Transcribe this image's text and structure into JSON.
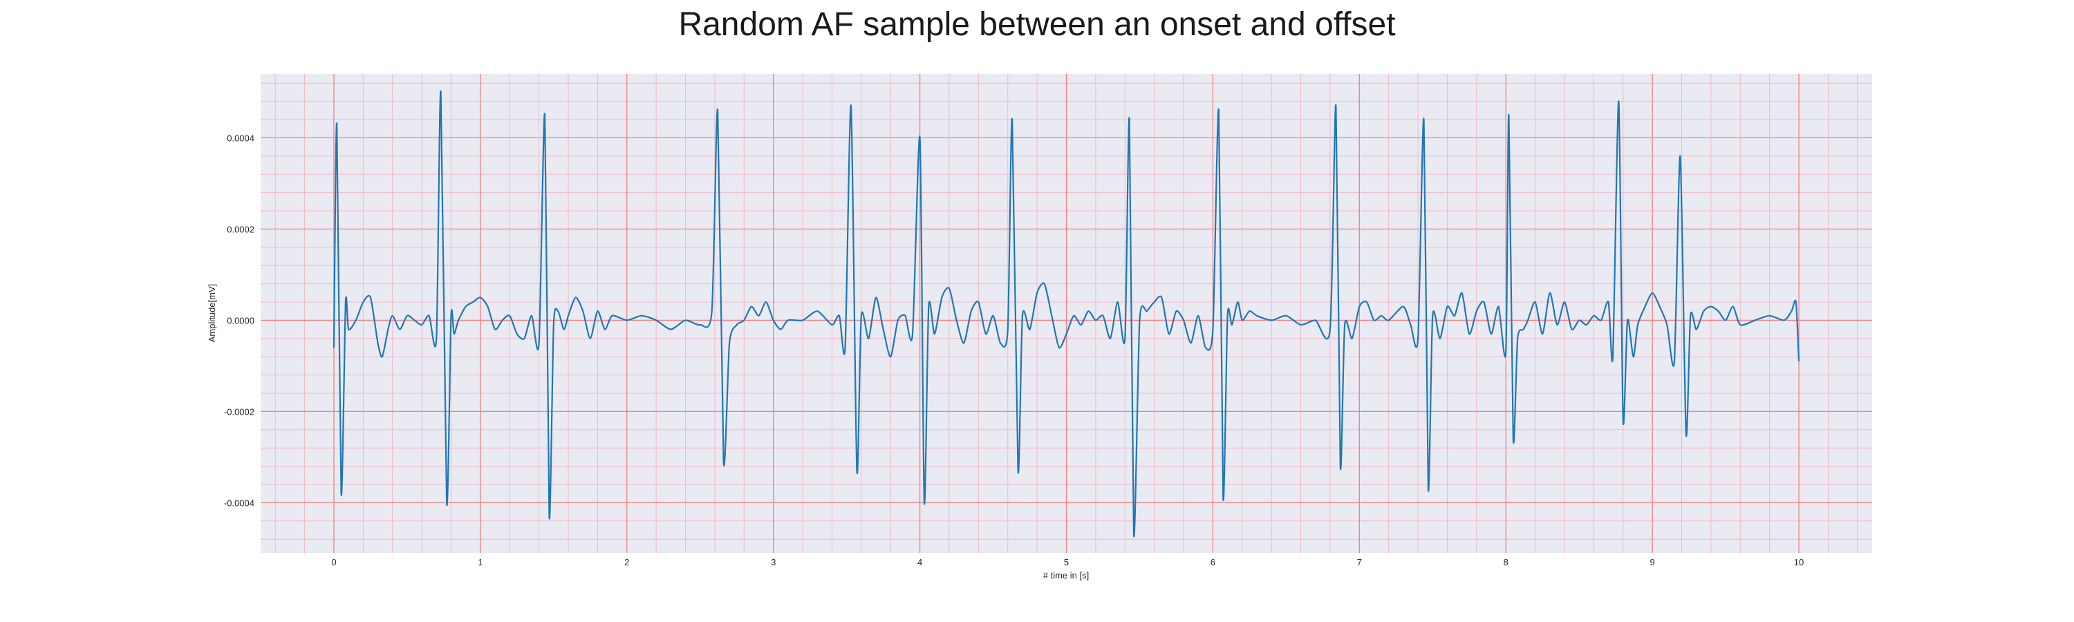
{
  "chart_data": {
    "type": "line",
    "title": "Random AF sample between an onset and offset",
    "xlabel": "# time in [s]",
    "ylabel": "Amplitude[mV]",
    "xlim": [
      -0.5,
      10.5
    ],
    "ylim": [
      -0.00051,
      0.00054
    ],
    "x_ticks": [
      0,
      1,
      2,
      3,
      4,
      5,
      6,
      7,
      8,
      9,
      10
    ],
    "x_tick_labels": [
      "0",
      "1",
      "2",
      "3",
      "4",
      "5",
      "6",
      "7",
      "8",
      "9",
      "10"
    ],
    "y_ticks": [
      -0.0004,
      -0.0002,
      0.0,
      0.0002,
      0.0004
    ],
    "y_tick_labels": [
      "-0.0004",
      "-0.0002",
      "0.0000",
      "0.0002",
      "0.0004"
    ],
    "grid": true,
    "grid_color": "#f08080",
    "minor_grid_color": "#f3b8c4",
    "background_color": "#eaeaf2",
    "line_color": "#1f77b4",
    "series": [
      {
        "x": [
          0.0,
          0.02,
          0.05,
          0.08,
          0.1,
          0.15,
          0.2,
          0.25,
          0.3,
          0.33,
          0.37,
          0.4,
          0.45,
          0.5,
          0.55,
          0.6,
          0.65,
          0.7,
          0.73,
          0.77,
          0.8,
          0.82,
          0.85,
          0.9,
          0.95,
          1.0,
          1.05,
          1.1,
          1.15,
          1.2,
          1.25,
          1.3,
          1.35,
          1.4,
          1.44,
          1.47,
          1.5,
          1.53,
          1.57,
          1.6,
          1.65,
          1.7,
          1.75,
          1.8,
          1.85,
          1.9,
          2.0,
          2.1,
          2.2,
          2.3,
          2.4,
          2.5,
          2.58,
          2.62,
          2.66,
          2.7,
          2.75,
          2.8,
          2.85,
          2.9,
          2.95,
          3.0,
          3.05,
          3.1,
          3.2,
          3.3,
          3.4,
          3.45,
          3.49,
          3.53,
          3.57,
          3.6,
          3.65,
          3.7,
          3.75,
          3.8,
          3.85,
          3.9,
          3.95,
          4.0,
          4.03,
          4.06,
          4.1,
          4.15,
          4.2,
          4.25,
          4.3,
          4.35,
          4.4,
          4.45,
          4.5,
          4.55,
          4.6,
          4.63,
          4.67,
          4.7,
          4.75,
          4.8,
          4.85,
          4.9,
          4.95,
          5.0,
          5.05,
          5.1,
          5.15,
          5.2,
          5.25,
          5.3,
          5.35,
          5.4,
          5.43,
          5.46,
          5.5,
          5.55,
          5.6,
          5.65,
          5.7,
          5.75,
          5.8,
          5.85,
          5.9,
          5.95,
          6.0,
          6.04,
          6.07,
          6.1,
          6.13,
          6.17,
          6.2,
          6.25,
          6.3,
          6.4,
          6.5,
          6.6,
          6.7,
          6.8,
          6.84,
          6.87,
          6.9,
          6.95,
          7.0,
          7.05,
          7.1,
          7.15,
          7.2,
          7.3,
          7.35,
          7.4,
          7.44,
          7.47,
          7.5,
          7.55,
          7.6,
          7.65,
          7.7,
          7.75,
          7.8,
          7.85,
          7.9,
          7.95,
          8.0,
          8.02,
          8.05,
          8.08,
          8.12,
          8.15,
          8.2,
          8.25,
          8.3,
          8.35,
          8.4,
          8.45,
          8.5,
          8.55,
          8.6,
          8.65,
          8.7,
          8.73,
          8.77,
          8.8,
          8.83,
          8.87,
          8.9,
          8.95,
          9.0,
          9.05,
          9.1,
          9.15,
          9.19,
          9.23,
          9.26,
          9.3,
          9.35,
          9.4,
          9.45,
          9.5,
          9.55,
          9.6,
          9.7,
          9.8,
          9.9,
          9.95,
          9.98,
          10.0
        ],
        "y": [
          -6e-05,
          0.00043,
          -0.00038,
          4e-05,
          -2e-05,
          0.0,
          4e-05,
          5e-05,
          -5e-05,
          -8e-05,
          -2e-05,
          1e-05,
          -2e-05,
          1e-05,
          0.0,
          -1e-05,
          1e-05,
          -4e-05,
          0.0005,
          -0.0004,
          1e-05,
          -3e-05,
          0.0,
          3e-05,
          4e-05,
          5e-05,
          3e-05,
          -2e-05,
          0.0,
          1e-05,
          -3e-05,
          -4e-05,
          1e-05,
          -5e-05,
          0.00045,
          -0.00043,
          -1e-05,
          2e-05,
          -2e-05,
          1e-05,
          5e-05,
          2e-05,
          -4e-05,
          2e-05,
          -2e-05,
          1e-05,
          0.0,
          1e-05,
          0.0,
          -2e-05,
          0.0,
          -1e-05,
          2e-05,
          0.00046,
          -0.00031,
          -5e-05,
          -1e-05,
          0.0,
          3e-05,
          1e-05,
          4e-05,
          0.0,
          -2e-05,
          0.0,
          0.0,
          2e-05,
          -1e-05,
          1e-05,
          -6e-05,
          0.00047,
          -0.00033,
          1e-05,
          -4e-05,
          5e-05,
          -2e-05,
          -8e-05,
          0.0,
          1e-05,
          -3e-05,
          0.0004,
          -0.0004,
          3e-05,
          -3e-05,
          5e-05,
          7e-05,
          0.0,
          -5e-05,
          2e-05,
          4e-05,
          -3e-05,
          1e-05,
          -5e-05,
          -2e-05,
          0.00044,
          -0.00033,
          1e-05,
          -2e-05,
          6e-05,
          8e-05,
          1e-05,
          -6e-05,
          -3e-05,
          1e-05,
          -1e-05,
          2e-05,
          0.0,
          1e-05,
          -4e-05,
          4e-05,
          -4e-05,
          0.00044,
          -0.00047,
          0.0,
          2e-05,
          4e-05,
          5e-05,
          -3e-05,
          2e-05,
          0.0,
          -5e-05,
          1e-05,
          -6e-05,
          -2e-05,
          0.00046,
          -0.00039,
          1e-05,
          -1e-05,
          4e-05,
          0.0,
          2e-05,
          1e-05,
          0.0,
          1e-05,
          -1e-05,
          0.0,
          -2e-05,
          0.00047,
          -0.00032,
          -1e-05,
          -4e-05,
          3e-05,
          4e-05,
          0.0,
          1e-05,
          0.0,
          3e-05,
          -1e-05,
          -4e-05,
          0.00044,
          -0.00037,
          1e-05,
          -4e-05,
          3e-05,
          1e-05,
          6e-05,
          -3e-05,
          2e-05,
          4e-05,
          -3e-05,
          3e-05,
          -7e-05,
          0.00045,
          -0.00026,
          -4e-05,
          -2e-05,
          0.0,
          4e-05,
          -3e-05,
          6e-05,
          -1e-05,
          4e-05,
          -2e-05,
          0.0,
          -1e-05,
          1e-05,
          0.0,
          4e-05,
          -8e-05,
          0.00048,
          -0.00022,
          0.0,
          -8e-05,
          -1e-05,
          3e-05,
          6e-05,
          3e-05,
          -1e-05,
          -9e-05,
          0.00036,
          -0.00025,
          1e-05,
          -2e-05,
          2e-05,
          3e-05,
          2e-05,
          0.0,
          3e-05,
          -1e-05,
          0.0,
          1e-05,
          0.0,
          2e-05,
          4e-05,
          -9e-05
        ]
      }
    ]
  }
}
